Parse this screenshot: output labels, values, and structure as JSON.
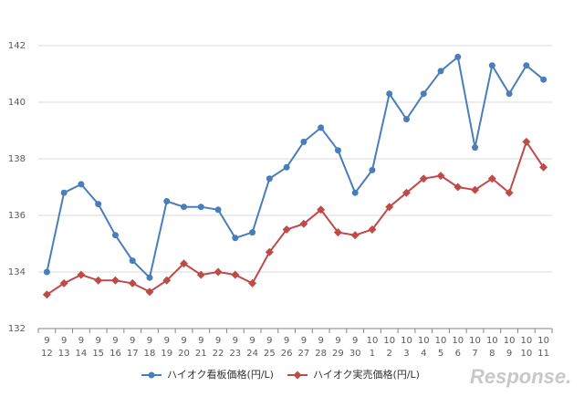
{
  "chart_data": {
    "type": "line",
    "categories": [
      [
        "9",
        "12"
      ],
      [
        "9",
        "13"
      ],
      [
        "9",
        "14"
      ],
      [
        "9",
        "15"
      ],
      [
        "9",
        "16"
      ],
      [
        "9",
        "17"
      ],
      [
        "9",
        "18"
      ],
      [
        "9",
        "19"
      ],
      [
        "9",
        "20"
      ],
      [
        "9",
        "21"
      ],
      [
        "9",
        "22"
      ],
      [
        "9",
        "23"
      ],
      [
        "9",
        "24"
      ],
      [
        "9",
        "25"
      ],
      [
        "9",
        "26"
      ],
      [
        "9",
        "27"
      ],
      [
        "9",
        "28"
      ],
      [
        "9",
        "29"
      ],
      [
        "9",
        "30"
      ],
      [
        "10",
        "1"
      ],
      [
        "10",
        "2"
      ],
      [
        "10",
        "3"
      ],
      [
        "10",
        "4"
      ],
      [
        "10",
        "5"
      ],
      [
        "10",
        "6"
      ],
      [
        "10",
        "7"
      ],
      [
        "10",
        "8"
      ],
      [
        "10",
        "9"
      ],
      [
        "10",
        "10"
      ],
      [
        "10",
        "11"
      ]
    ],
    "series": [
      {
        "name": "ハイオク看板価格(円/L)",
        "color": "#4a7ebb",
        "marker": "circle",
        "values": [
          134.0,
          136.8,
          137.1,
          136.4,
          135.3,
          134.4,
          133.8,
          136.5,
          136.3,
          136.3,
          136.2,
          135.2,
          135.4,
          137.3,
          137.7,
          138.6,
          139.1,
          138.3,
          136.8,
          137.6,
          140.3,
          139.4,
          140.3,
          141.1,
          141.6,
          138.4,
          141.3,
          140.3,
          141.3,
          140.8
        ]
      },
      {
        "name": "ハイオク実売価格(円/L)",
        "color": "#be4b48",
        "marker": "diamond",
        "values": [
          133.2,
          133.6,
          133.9,
          133.7,
          133.7,
          133.6,
          133.3,
          133.7,
          134.3,
          133.9,
          134.0,
          133.9,
          133.6,
          134.7,
          135.5,
          135.7,
          136.2,
          135.4,
          135.3,
          135.5,
          136.3,
          136.8,
          137.3,
          137.4,
          137.0,
          136.9,
          137.3,
          136.8,
          138.6,
          137.7
        ]
      }
    ],
    "ylim": [
      132,
      142
    ],
    "yticks": [
      132,
      134,
      136,
      138,
      140,
      142
    ],
    "grid": true,
    "legend": "bottom",
    "watermark": "Response."
  }
}
